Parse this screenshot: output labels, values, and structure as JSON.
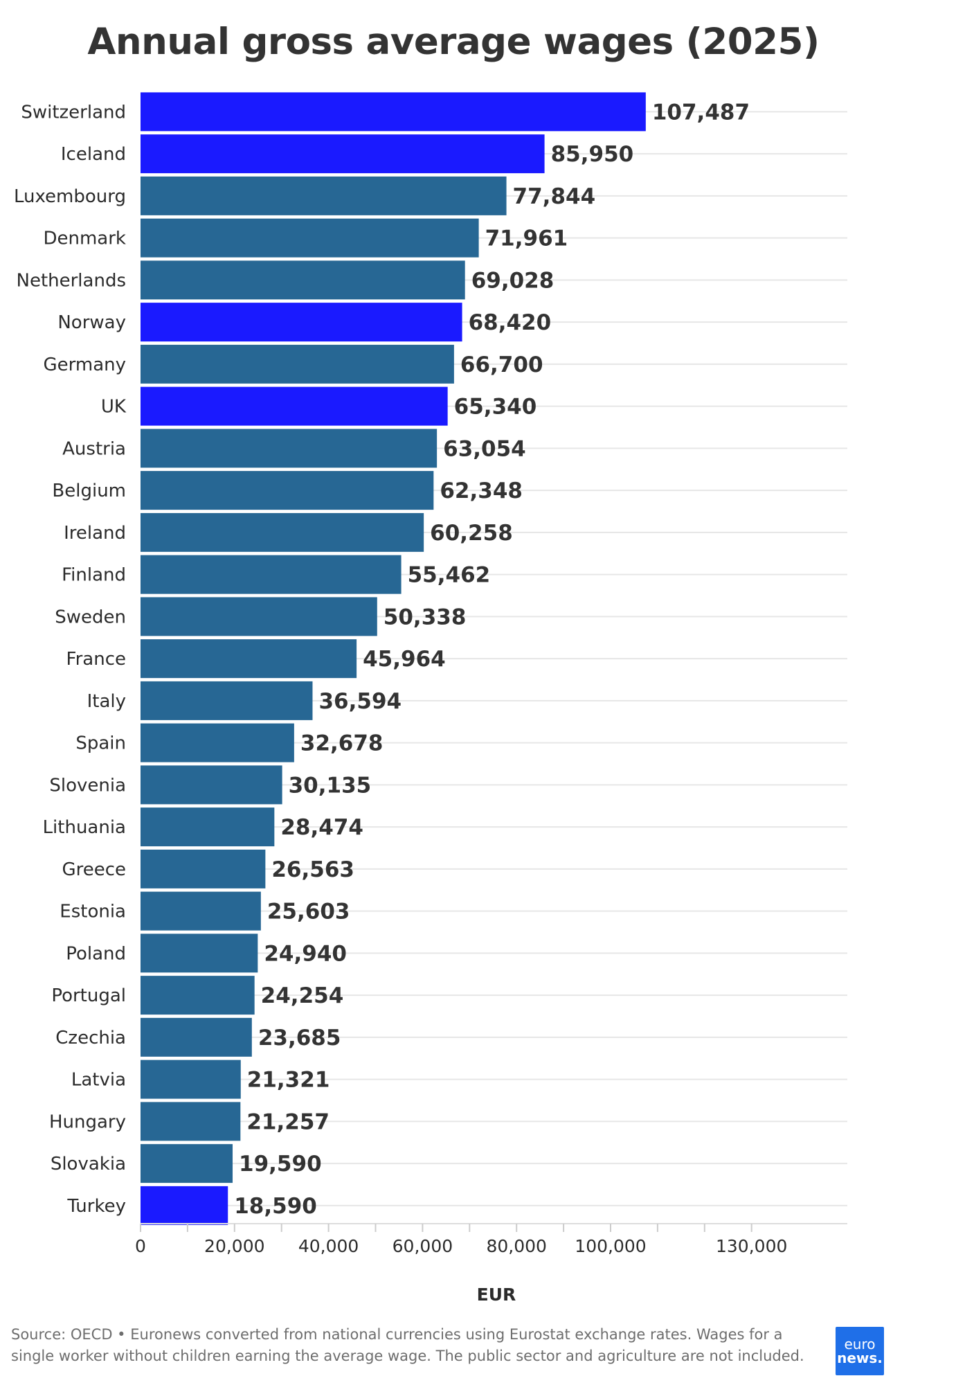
{
  "chart_data": {
    "type": "bar",
    "orientation": "horizontal",
    "title": "Annual gross average wages (2025)",
    "xlabel": "EUR",
    "ylabel": "",
    "xlim": [
      0,
      135000
    ],
    "ticks": [
      0,
      20000,
      40000,
      60000,
      80000,
      100000,
      130000
    ],
    "tick_labels": [
      "0",
      "20,000",
      "40,000",
      "60,000",
      "80,000",
      "100,000",
      "130,000"
    ],
    "grid": true,
    "categories": [
      "Switzerland",
      "Iceland",
      "Luxembourg",
      "Denmark",
      "Netherlands",
      "Norway",
      "Germany",
      "UK",
      "Austria",
      "Belgium",
      "Ireland",
      "Finland",
      "Sweden",
      "France",
      "Italy",
      "Spain",
      "Slovenia",
      "Lithuania",
      "Greece",
      "Estonia",
      "Poland",
      "Portugal",
      "Czechia",
      "Latvia",
      "Hungary",
      "Slovakia",
      "Turkey"
    ],
    "values": [
      107487,
      85950,
      77844,
      71961,
      69028,
      68420,
      66700,
      65340,
      63054,
      62348,
      60258,
      55462,
      50338,
      45964,
      36594,
      32678,
      30135,
      28474,
      26563,
      25603,
      24940,
      24254,
      23685,
      21321,
      21257,
      19590,
      18590
    ],
    "value_labels": [
      "107,487",
      "85,950",
      "77,844",
      "71,961",
      "69,028",
      "68,420",
      "66,700",
      "65,340",
      "63,054",
      "62,348",
      "60,258",
      "55,462",
      "50,338",
      "45,964",
      "36,594",
      "32,678",
      "30,135",
      "28,474",
      "26,563",
      "25,603",
      "24,940",
      "24,254",
      "23,685",
      "21,321",
      "21,257",
      "19,590",
      "18,590"
    ],
    "highlighted": [
      "Switzerland",
      "Iceland",
      "Norway",
      "UK",
      "Turkey"
    ],
    "colors": {
      "default": "#276794",
      "highlight": "#1a1aff",
      "grid": "#e6e6e6"
    }
  },
  "source_note": "Source: OECD • Euronews converted from national currencies using Eurostat exchange rates. Wages for a single worker without children earning the average wage. The public sector and agriculture are not included.",
  "logo": {
    "line1": "euro",
    "line2": "news."
  }
}
